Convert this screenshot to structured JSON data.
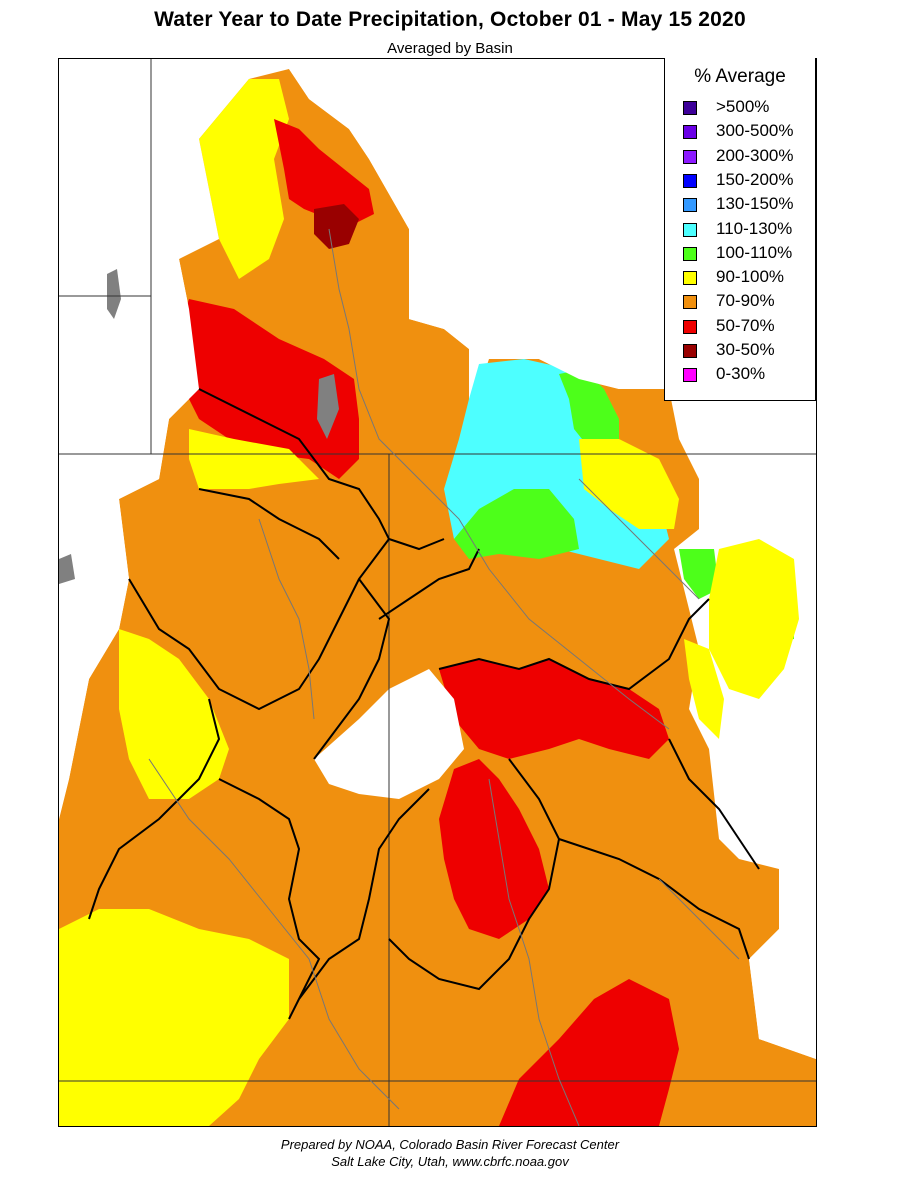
{
  "title": "Water Year to Date Precipitation, October 01  - May 15 2020",
  "subtitle": "Averaged by Basin",
  "legend": {
    "title": "% Average",
    "items": [
      {
        "label": ">500%",
        "color": "#3d0099"
      },
      {
        "label": "300-500%",
        "color": "#6a00e6"
      },
      {
        "label": "200-300%",
        "color": "#8c1aff"
      },
      {
        "label": "150-200%",
        "color": "#0000ff"
      },
      {
        "label": "130-150%",
        "color": "#3399ff"
      },
      {
        "label": "110-130%",
        "color": "#4dffff"
      },
      {
        "label": "100-110%",
        "color": "#4dff1a"
      },
      {
        "label": "90-100%",
        "color": "#ffff00"
      },
      {
        "label": "70-90%",
        "color": "#f0900f"
      },
      {
        "label": "50-70%",
        "color": "#ee0000"
      },
      {
        "label": "30-50%",
        "color": "#990000"
      },
      {
        "label": "0-30%",
        "color": "#ff00ff"
      }
    ]
  },
  "credit": {
    "line1": "Prepared by NOAA, Colorado Basin River Forecast Center",
    "line2": "Salt Lake City, Utah, www.cbrfc.noaa.gov"
  }
}
